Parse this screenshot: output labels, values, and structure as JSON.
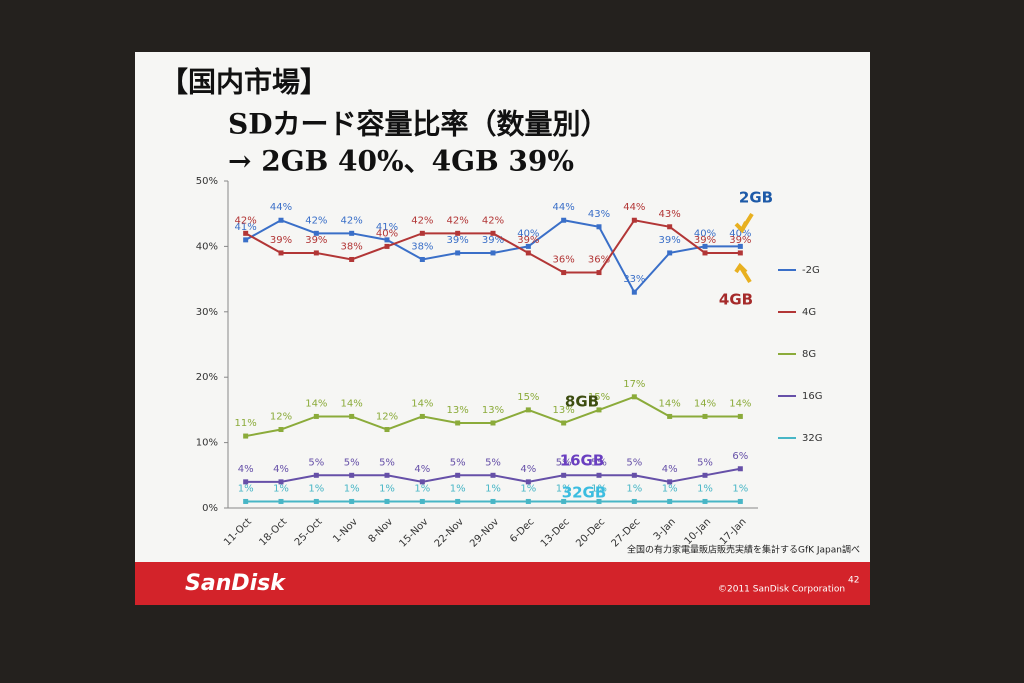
{
  "chart_data": {
    "type": "line",
    "title_lines": [
      "【国内市場】",
      "SDカード容量比率（数量別）",
      "→ 2GB 40%、4GB 39%"
    ],
    "categories": [
      "11-Oct",
      "18-Oct",
      "25-Oct",
      "1-Nov",
      "8-Nov",
      "15-Nov",
      "22-Nov",
      "29-Nov",
      "6-Dec",
      "13-Dec",
      "20-Dec",
      "27-Dec",
      "3-Jan",
      "10-Jan",
      "17-Jan"
    ],
    "series": [
      {
        "name": "-2G",
        "color": "#3a6fc8",
        "values": [
          41,
          44,
          42,
          42,
          41,
          38,
          39,
          39,
          40,
          44,
          43,
          33,
          39,
          40,
          40
        ],
        "value_labels": [
          "41%",
          "44%",
          "42%",
          "42%",
          "41%",
          "38%",
          "39%",
          "39%",
          "40%",
          "44%",
          "43%",
          "33%",
          "39%",
          "40%",
          "40%"
        ]
      },
      {
        "name": "4G",
        "color": "#b23636",
        "values": [
          42,
          39,
          39,
          38,
          40,
          42,
          42,
          42,
          39,
          36,
          36,
          44,
          43,
          39,
          39
        ],
        "value_labels": [
          "42%",
          "39%",
          "39%",
          "38%",
          "40%",
          "42%",
          "42%",
          "42%",
          "39%",
          "36%",
          "36%",
          "44%",
          "43%",
          "39%",
          "39%"
        ]
      },
      {
        "name": "8G",
        "color": "#8bab3a",
        "values": [
          11,
          12,
          14,
          14,
          12,
          14,
          13,
          13,
          15,
          13,
          15,
          17,
          14,
          14,
          14
        ],
        "value_labels": [
          "11%",
          "12%",
          "14%",
          "14%",
          "12%",
          "14%",
          "13%",
          "13%",
          "15%",
          "13%",
          "15%",
          "17%",
          "14%",
          "14%",
          "14%"
        ]
      },
      {
        "name": "16G",
        "color": "#6650a8",
        "values": [
          4,
          4,
          5,
          5,
          5,
          4,
          5,
          5,
          4,
          5,
          5,
          5,
          4,
          5,
          6
        ],
        "value_labels": [
          "4%",
          "4%",
          "5%",
          "5%",
          "5%",
          "4%",
          "5%",
          "5%",
          "4%",
          "5%",
          "5%",
          "5%",
          "4%",
          "5%",
          "6%"
        ]
      },
      {
        "name": "32G",
        "color": "#48b6c6",
        "values": [
          1,
          1,
          1,
          1,
          1,
          1,
          1,
          1,
          1,
          1,
          1,
          1,
          1,
          1,
          1
        ],
        "value_labels": [
          "1%",
          "1%",
          "1%",
          "1%",
          "1%",
          "1%",
          "1%",
          "1%",
          "1%",
          "1%",
          "1%",
          "1%",
          "1%",
          "1%",
          "1%"
        ]
      }
    ],
    "ylim": [
      0,
      50
    ],
    "yticks": [
      {
        "value": 0,
        "label": "0%"
      },
      {
        "value": 10,
        "label": "10%"
      },
      {
        "value": 20,
        "label": "20%"
      },
      {
        "value": 30,
        "label": "30%"
      },
      {
        "value": 40,
        "label": "40%"
      },
      {
        "value": 50,
        "label": "50%"
      }
    ],
    "grid": false,
    "legend": "right",
    "annotations": [
      "2GB",
      "4GB",
      "8GB",
      "16GB",
      "32GB"
    ],
    "source": "全国の有力家電量販店販売実績を集計するGfK Japan調べ",
    "footer_logo": "SanDisk",
    "footer_copyright": "©2011 SanDisk Corporation",
    "page_number": "42"
  }
}
